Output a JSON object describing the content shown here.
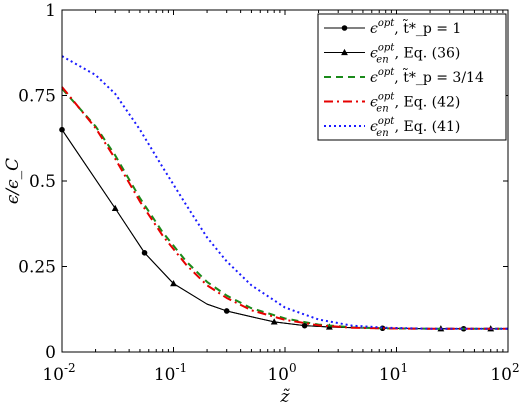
{
  "chart_data": {
    "type": "line",
    "title": "",
    "xlabel": "z̃",
    "ylabel": "ϵ/ϵ_C",
    "xscale": "log",
    "xlim": [
      0.01,
      100
    ],
    "ylim": [
      0,
      1
    ],
    "xticks": [
      {
        "value": 0.01,
        "base": "10",
        "exp": "-2"
      },
      {
        "value": 0.1,
        "base": "10",
        "exp": "-1"
      },
      {
        "value": 1,
        "base": "10",
        "exp": "0"
      },
      {
        "value": 10,
        "base": "10",
        "exp": "1"
      },
      {
        "value": 100,
        "base": "10",
        "exp": "2"
      }
    ],
    "yticks": [
      "0",
      "0.25",
      "0.5",
      "0.75",
      "1"
    ],
    "grid": false,
    "legend_position": "top-right",
    "series": [
      {
        "label_main": "ϵ",
        "label_sup": "opt",
        "label_sub": "",
        "label_rest": ", t̃*_p = 1",
        "color": "#000000",
        "dash": "",
        "width": 1,
        "marker": "circle",
        "points": [
          [
            0.01,
            0.65
          ],
          [
            0.03,
            0.42
          ],
          [
            0.055,
            0.29
          ],
          [
            0.1,
            0.2
          ],
          [
            0.2,
            0.14
          ],
          [
            0.3,
            0.12
          ],
          [
            0.5,
            0.103
          ],
          [
            0.8,
            0.088
          ],
          [
            1.5,
            0.077
          ],
          [
            2.5,
            0.073
          ],
          [
            5,
            0.07
          ],
          [
            10,
            0.069
          ],
          [
            20,
            0.068
          ],
          [
            50,
            0.068
          ],
          [
            100,
            0.068
          ]
        ],
        "marker_x": [
          0.01,
          0.055,
          0.3,
          1.5,
          7.5,
          40
        ]
      },
      {
        "label_main": "ϵ",
        "label_sup": "opt",
        "label_sub": "en",
        "label_rest": ", Eq. (36)",
        "color": "#000000",
        "dash": "",
        "width": 1,
        "marker": "triangle",
        "points": [
          [
            0.01,
            0.65
          ],
          [
            0.03,
            0.42
          ],
          [
            0.055,
            0.29
          ],
          [
            0.1,
            0.2
          ],
          [
            0.2,
            0.14
          ],
          [
            0.3,
            0.12
          ],
          [
            0.5,
            0.103
          ],
          [
            0.8,
            0.088
          ],
          [
            1.5,
            0.077
          ],
          [
            2.5,
            0.073
          ],
          [
            5,
            0.07
          ],
          [
            10,
            0.069
          ],
          [
            20,
            0.068
          ],
          [
            50,
            0.068
          ],
          [
            100,
            0.068
          ]
        ],
        "marker_x": [
          0.03,
          0.1,
          0.8,
          2.5,
          25,
          70
        ]
      },
      {
        "label_main": "ϵ",
        "label_sup": "opt",
        "label_sub": "",
        "label_rest": ", t̃*_p = 3/14",
        "color": "#1a8a1a",
        "dash": "7,5",
        "width": 2,
        "marker": "none",
        "points": [
          [
            0.01,
            0.77
          ],
          [
            0.02,
            0.66
          ],
          [
            0.03,
            0.575
          ],
          [
            0.05,
            0.45
          ],
          [
            0.08,
            0.35
          ],
          [
            0.13,
            0.265
          ],
          [
            0.2,
            0.205
          ],
          [
            0.3,
            0.165
          ],
          [
            0.5,
            0.128
          ],
          [
            1,
            0.098
          ],
          [
            2,
            0.08
          ],
          [
            4,
            0.072
          ],
          [
            8,
            0.069
          ],
          [
            20,
            0.068
          ],
          [
            100,
            0.068
          ]
        ],
        "marker_x": []
      },
      {
        "label_main": "ϵ",
        "label_sup": "opt",
        "label_sub": "en",
        "label_rest": ", Eq. (42)",
        "color": "#e60000",
        "dash": "9,4,2,4",
        "width": 2,
        "marker": "none",
        "points": [
          [
            0.01,
            0.775
          ],
          [
            0.02,
            0.655
          ],
          [
            0.03,
            0.565
          ],
          [
            0.05,
            0.44
          ],
          [
            0.08,
            0.34
          ],
          [
            0.13,
            0.255
          ],
          [
            0.2,
            0.195
          ],
          [
            0.3,
            0.158
          ],
          [
            0.5,
            0.122
          ],
          [
            1,
            0.094
          ],
          [
            2,
            0.078
          ],
          [
            4,
            0.071
          ],
          [
            8,
            0.069
          ],
          [
            20,
            0.068
          ],
          [
            100,
            0.068
          ]
        ],
        "marker_x": []
      },
      {
        "label_main": "ϵ",
        "label_sup": "opt",
        "label_sub": "en",
        "label_rest": ", Eq. (41)",
        "color": "#1a1aff",
        "dash": "2,3",
        "width": 2,
        "marker": "none",
        "points": [
          [
            0.01,
            0.865
          ],
          [
            0.02,
            0.81
          ],
          [
            0.03,
            0.755
          ],
          [
            0.05,
            0.65
          ],
          [
            0.08,
            0.54
          ],
          [
            0.13,
            0.43
          ],
          [
            0.2,
            0.335
          ],
          [
            0.3,
            0.265
          ],
          [
            0.5,
            0.195
          ],
          [
            1,
            0.13
          ],
          [
            2,
            0.095
          ],
          [
            4,
            0.077
          ],
          [
            8,
            0.071
          ],
          [
            20,
            0.068
          ],
          [
            100,
            0.068
          ]
        ],
        "marker_x": []
      }
    ]
  }
}
